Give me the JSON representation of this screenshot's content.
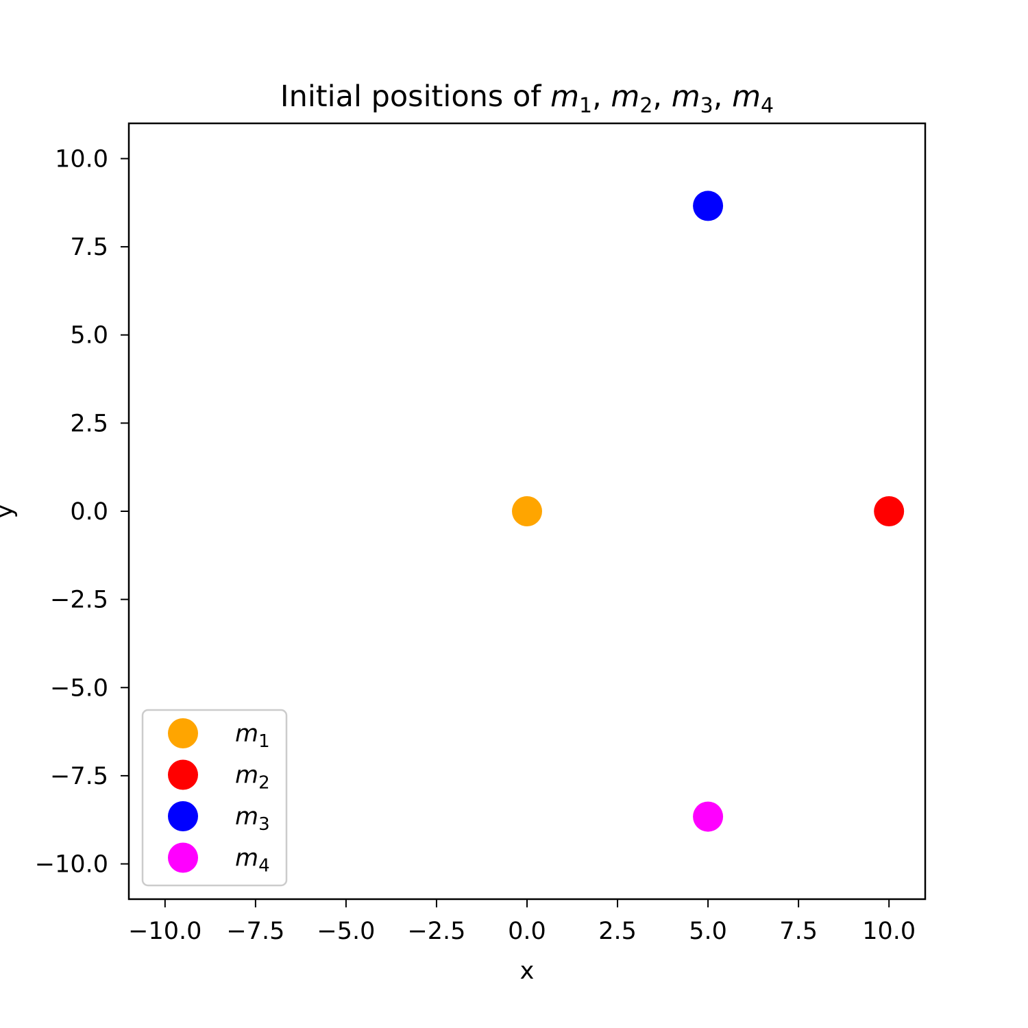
{
  "chart_data": {
    "type": "scatter",
    "title": {
      "prefix": "Initial positions of ",
      "parts": [
        {
          "base": "m",
          "sub": "1"
        },
        {
          "base": "m",
          "sub": "2"
        },
        {
          "base": "m",
          "sub": "3"
        },
        {
          "base": "m",
          "sub": "4"
        }
      ],
      "separator": ", "
    },
    "xlabel": "x",
    "ylabel": "y",
    "xlim": [
      -11,
      11
    ],
    "ylim": [
      -11,
      11
    ],
    "xticks": [
      -10.0,
      -7.5,
      -5.0,
      -2.5,
      0.0,
      2.5,
      5.0,
      7.5,
      10.0
    ],
    "yticks": [
      -10.0,
      -7.5,
      -5.0,
      -2.5,
      0.0,
      2.5,
      5.0,
      7.5,
      10.0
    ],
    "xtick_labels": [
      "−10.0",
      "−7.5",
      "−5.0",
      "−2.5",
      "0.0",
      "2.5",
      "5.0",
      "7.5",
      "10.0"
    ],
    "ytick_labels": [
      "−10.0",
      "−7.5",
      "−5.0",
      "−2.5",
      "0.0",
      "2.5",
      "5.0",
      "7.5",
      "10.0"
    ],
    "grid": false,
    "legend_position": "lower-left",
    "series": [
      {
        "name": "m1",
        "label_base": "m",
        "label_sub": "1",
        "color": "#ffa500",
        "x": [
          0.0
        ],
        "y": [
          0.0
        ]
      },
      {
        "name": "m2",
        "label_base": "m",
        "label_sub": "2",
        "color": "#ff0000",
        "x": [
          10.0
        ],
        "y": [
          0.0
        ]
      },
      {
        "name": "m3",
        "label_base": "m",
        "label_sub": "3",
        "color": "#0000ff",
        "x": [
          5.0
        ],
        "y": [
          8.66
        ]
      },
      {
        "name": "m4",
        "label_base": "m",
        "label_sub": "4",
        "color": "#ff00ff",
        "x": [
          5.0
        ],
        "y": [
          -8.66
        ]
      }
    ]
  }
}
